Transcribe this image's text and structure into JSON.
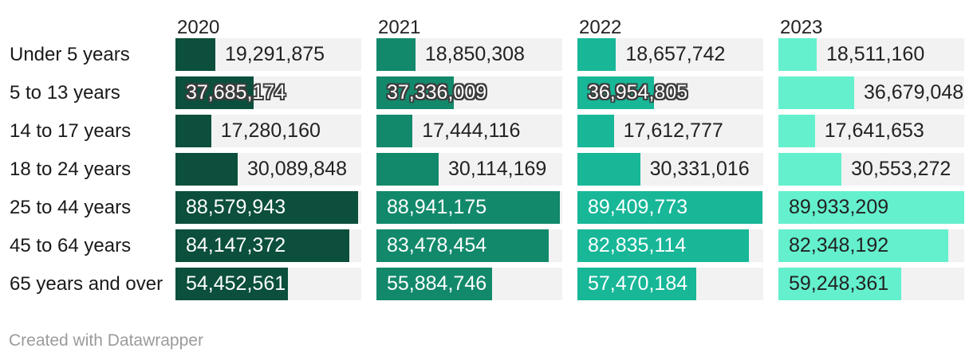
{
  "chart_data": {
    "type": "bar",
    "layout": "horizontal-grouped-small-multiples",
    "title": "",
    "categories": [
      "Under 5 years",
      "5 to 13 years",
      "14 to 17 years",
      "18 to 24 years",
      "25 to 44 years",
      "45 to 64 years",
      "65 years and over"
    ],
    "series": [
      {
        "name": "2020",
        "color": "#0b4f3c",
        "inside_label_color": "#ffffff",
        "values": [
          19291875,
          37685174,
          17280160,
          30089848,
          88579943,
          84147372,
          54452561
        ],
        "labels": [
          "19,291,875",
          "37,685,174",
          "17,280,160",
          "30,089,848",
          "88,579,943",
          "84,147,372",
          "54,452,561"
        ]
      },
      {
        "name": "2021",
        "color": "#12896b",
        "inside_label_color": "#ffffff",
        "values": [
          18850308,
          37336009,
          17444116,
          30114169,
          88941175,
          83478454,
          55884746
        ],
        "labels": [
          "18,850,308",
          "37,336,009",
          "17,444,116",
          "30,114,169",
          "88,941,175",
          "83,478,454",
          "55,884,746"
        ]
      },
      {
        "name": "2022",
        "color": "#17b798",
        "inside_label_color": "#ffffff",
        "values": [
          18657742,
          36954805,
          17612777,
          30331016,
          89409773,
          82835114,
          57470184
        ],
        "labels": [
          "18,657,742",
          "36,954,805",
          "17,612,777",
          "30,331,016",
          "89,409,773",
          "82,835,114",
          "57,470,184"
        ]
      },
      {
        "name": "2023",
        "color": "#64f0cd",
        "inside_label_color": "#222222",
        "values": [
          18511160,
          36679048,
          17641653,
          30553272,
          89933209,
          82348192,
          59248361
        ],
        "labels": [
          "18,511,160",
          "36,679,048",
          "17,641,653",
          "30,553,272",
          "89,933,209",
          "82,348,192",
          "59,248,361"
        ]
      }
    ],
    "value_axis_max": 89933209,
    "label_placement": [
      [
        "outside",
        "outside",
        "outside",
        "outside"
      ],
      [
        "overflow",
        "overflow",
        "overflow",
        "outside"
      ],
      [
        "outside",
        "outside",
        "outside",
        "outside"
      ],
      [
        "outside",
        "outside",
        "outside",
        "outside"
      ],
      [
        "inside",
        "inside",
        "inside",
        "inside"
      ],
      [
        "inside",
        "inside",
        "inside",
        "inside"
      ],
      [
        "inside",
        "inside",
        "inside",
        "inside"
      ]
    ],
    "track_color": "#f2f2f2",
    "grid": false,
    "legend_position": "column-headers",
    "footer": "Created with Datawrapper"
  }
}
